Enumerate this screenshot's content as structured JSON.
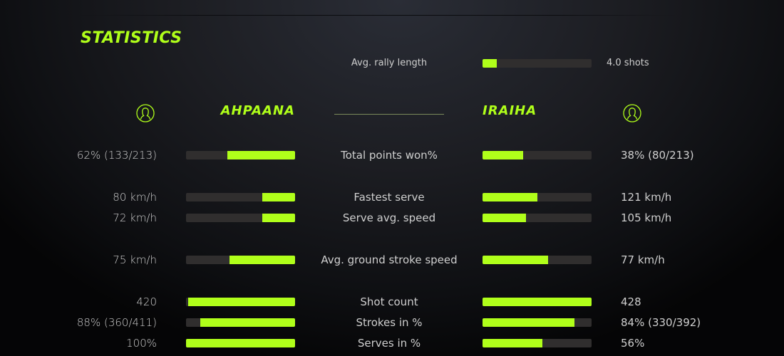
{
  "title": "STATISTICS",
  "accent_color": "#b0ff1a",
  "rally": {
    "label": "Avg. rally length",
    "value": "4.0 shots",
    "fill_pct": 13
  },
  "players": {
    "left": {
      "name": "AHPAANA",
      "icon": "user-circle-icon"
    },
    "right": {
      "name": "IRAIHA",
      "icon": "user-circle-icon"
    }
  },
  "stats": [
    {
      "label": "Total points won%",
      "left": "62% (133/213)",
      "right": "38% (80/213)",
      "left_pct": 62,
      "right_pct": 37
    },
    {
      "label": "Fastest serve",
      "left": "80 km/h",
      "right": "121 km/h",
      "left_pct": 30,
      "right_pct": 50
    },
    {
      "label": "Serve avg. speed",
      "left": "72 km/h",
      "right": "105 km/h",
      "left_pct": 30,
      "right_pct": 40
    },
    {
      "label": "Avg. ground stroke speed",
      "left": "75 km/h",
      "right": "77 km/h",
      "left_pct": 60,
      "right_pct": 60
    },
    {
      "label": "Shot count",
      "left": "420",
      "right": "428",
      "left_pct": 98,
      "right_pct": 100
    },
    {
      "label": "Strokes in %",
      "left": "88% (360/411)",
      "right": "84% (330/392)",
      "left_pct": 87,
      "right_pct": 84
    },
    {
      "label": "Serves in %",
      "left": "100%",
      "right": "56%",
      "left_pct": 100,
      "right_pct": 55
    }
  ]
}
